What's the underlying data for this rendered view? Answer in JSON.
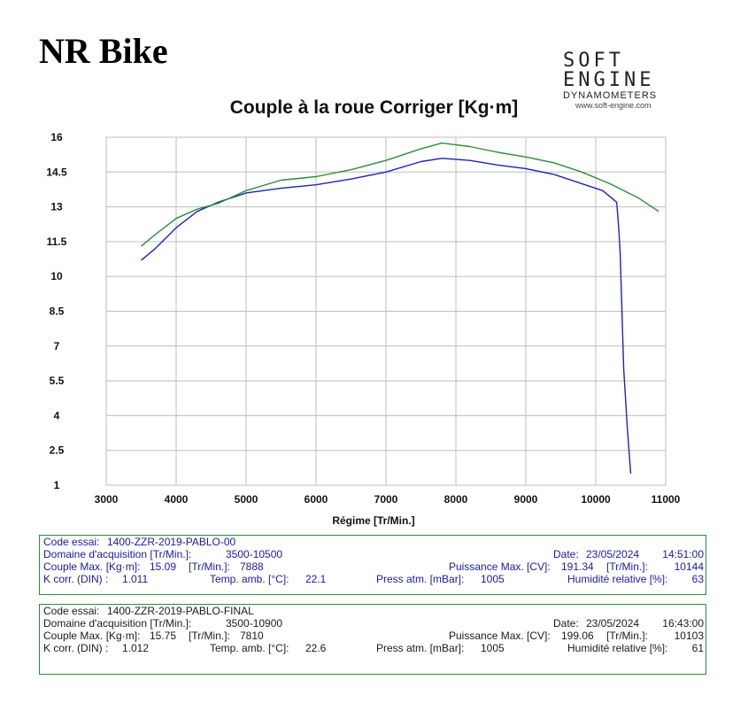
{
  "header": {
    "title": "NR Bike",
    "logo_mark": "SOFT ENGINE",
    "logo_sub": "DYNAMOMETERS",
    "logo_url": "www.soft-engine.com"
  },
  "chart_data": {
    "type": "line",
    "title": "Couple à la roue Corriger [Kg·m]",
    "xlabel": "Régime [Tr/Min.]",
    "ylabel": "",
    "xlim": [
      3000,
      11000
    ],
    "ylim": [
      1,
      16
    ],
    "xticks": [
      3000,
      4000,
      5000,
      6000,
      7000,
      8000,
      9000,
      10000,
      11000
    ],
    "yticks": [
      1,
      2.5,
      4,
      5.5,
      7,
      8.5,
      10,
      11.5,
      13,
      14.5,
      16
    ],
    "grid": true,
    "series": [
      {
        "name": "1400-ZZR-2019-PABLO-00",
        "color": "#1f23b8",
        "x": [
          3500,
          3700,
          4000,
          4300,
          4600,
          5000,
          5500,
          6000,
          6500,
          7000,
          7500,
          7800,
          8200,
          8600,
          9000,
          9400,
          9800,
          10100,
          10300,
          10330,
          10350,
          10370,
          10400,
          10450,
          10500
        ],
        "y": [
          10.7,
          11.2,
          12.1,
          12.8,
          13.2,
          13.6,
          13.8,
          13.95,
          14.2,
          14.5,
          14.95,
          15.09,
          15.0,
          14.8,
          14.65,
          14.4,
          14.0,
          13.7,
          13.2,
          12.0,
          11.0,
          9.0,
          6.0,
          3.5,
          1.5
        ]
      },
      {
        "name": "1400-ZZR-2019-PABLO-FINAL",
        "color": "#2e8b3e",
        "x": [
          3500,
          3700,
          4000,
          4300,
          4600,
          5000,
          5500,
          6000,
          6500,
          7000,
          7500,
          7800,
          8200,
          8600,
          9000,
          9400,
          9800,
          10200,
          10600,
          10900
        ],
        "y": [
          11.3,
          11.8,
          12.5,
          12.9,
          13.15,
          13.7,
          14.15,
          14.3,
          14.6,
          15.0,
          15.5,
          15.75,
          15.6,
          15.35,
          15.15,
          14.9,
          14.5,
          14.0,
          13.4,
          12.8
        ]
      }
    ]
  },
  "tests": [
    {
      "code_label": "Code essai:",
      "code_value": "1400-ZZR-2019-PABLO-00",
      "domain_label": "Domaine d'acquisition [Tr/Min.]:",
      "domain_value": "3500-10500",
      "date_label": "Date:",
      "date_value": "23/05/2024",
      "time_value": "14:51:00",
      "torque_label": "Couple Max. [Kg·m]:",
      "torque_value": "15.09",
      "torque_rpm_label": "[Tr/Min.]:",
      "torque_rpm_value": "7888",
      "power_label": "Puissance Max. [CV]:",
      "power_value": "191.34",
      "power_rpm_label": "[Tr/Min.]:",
      "power_rpm_value": "10144",
      "kcorr_label": "K corr. (DIN) :",
      "kcorr_value": "1.011",
      "temp_label": "Temp. amb. [°C]:",
      "temp_value": "22.1",
      "press_label": "Press atm. [mBar]:",
      "press_value": "1005",
      "hum_label": "Humidité relative [%]:",
      "hum_value": "63"
    },
    {
      "code_label": "Code essai:",
      "code_value": "1400-ZZR-2019-PABLO-FINAL",
      "domain_label": "Domaine d'acquisition [Tr/Min.]:",
      "domain_value": "3500-10900",
      "date_label": "Date:",
      "date_value": "23/05/2024",
      "time_value": "16:43:00",
      "torque_label": "Couple Max. [Kg·m]:",
      "torque_value": "15.75",
      "torque_rpm_label": "[Tr/Min.]:",
      "torque_rpm_value": "7810",
      "power_label": "Puissance Max. [CV]:",
      "power_value": "199.06",
      "power_rpm_label": "[Tr/Min.]:",
      "power_rpm_value": "10103",
      "kcorr_label": "K corr. (DIN) :",
      "kcorr_value": "1.012",
      "temp_label": "Temp. amb. [°C]:",
      "temp_value": "22.6",
      "press_label": "Press atm. [mBar]:",
      "press_value": "1005",
      "hum_label": "Humidité relative [%]:",
      "hum_value": "61"
    }
  ]
}
